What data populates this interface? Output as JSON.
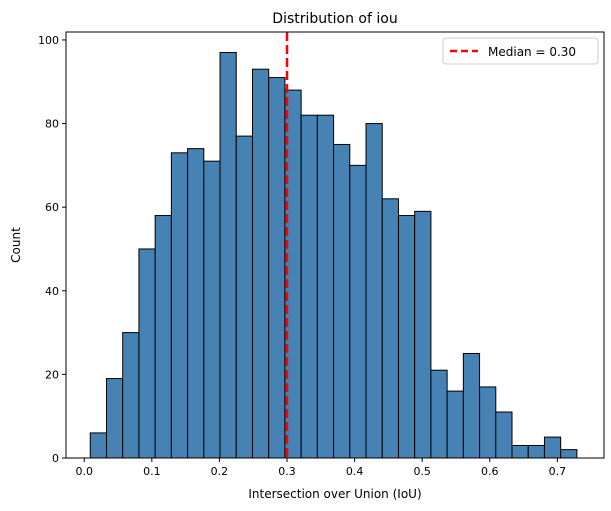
{
  "chart_data": {
    "type": "bar",
    "title": "Distribution of iou",
    "xlabel": "Intersection over Union (IoU)",
    "ylabel": "Count",
    "xlim": [
      -0.027,
      0.769
    ],
    "ylim": [
      0,
      101.9
    ],
    "xticks": [
      "0.0",
      "0.1",
      "0.2",
      "0.3",
      "0.4",
      "0.5",
      "0.6",
      "0.7"
    ],
    "xtick_values": [
      0,
      0.1,
      0.2,
      0.3,
      0.4,
      0.5,
      0.6,
      0.7
    ],
    "yticks": [
      "0",
      "20",
      "40",
      "60",
      "80",
      "100"
    ],
    "ytick_values": [
      0,
      20,
      40,
      60,
      80,
      100
    ],
    "bin_start": 0.0089,
    "bin_width": 0.024,
    "values": [
      6,
      19,
      30,
      50,
      58,
      73,
      74,
      71,
      97,
      77,
      93,
      91,
      88,
      82,
      82,
      75,
      70,
      80,
      62,
      58,
      59,
      21,
      16,
      25,
      17,
      11,
      3,
      3,
      5,
      2
    ],
    "bar_color": "#4682b4",
    "edge_color": "#000000",
    "median": {
      "value": 0.3,
      "label": "Median = 0.30",
      "color": "#ff0000"
    },
    "legend_position": "top-right",
    "grid": false
  }
}
